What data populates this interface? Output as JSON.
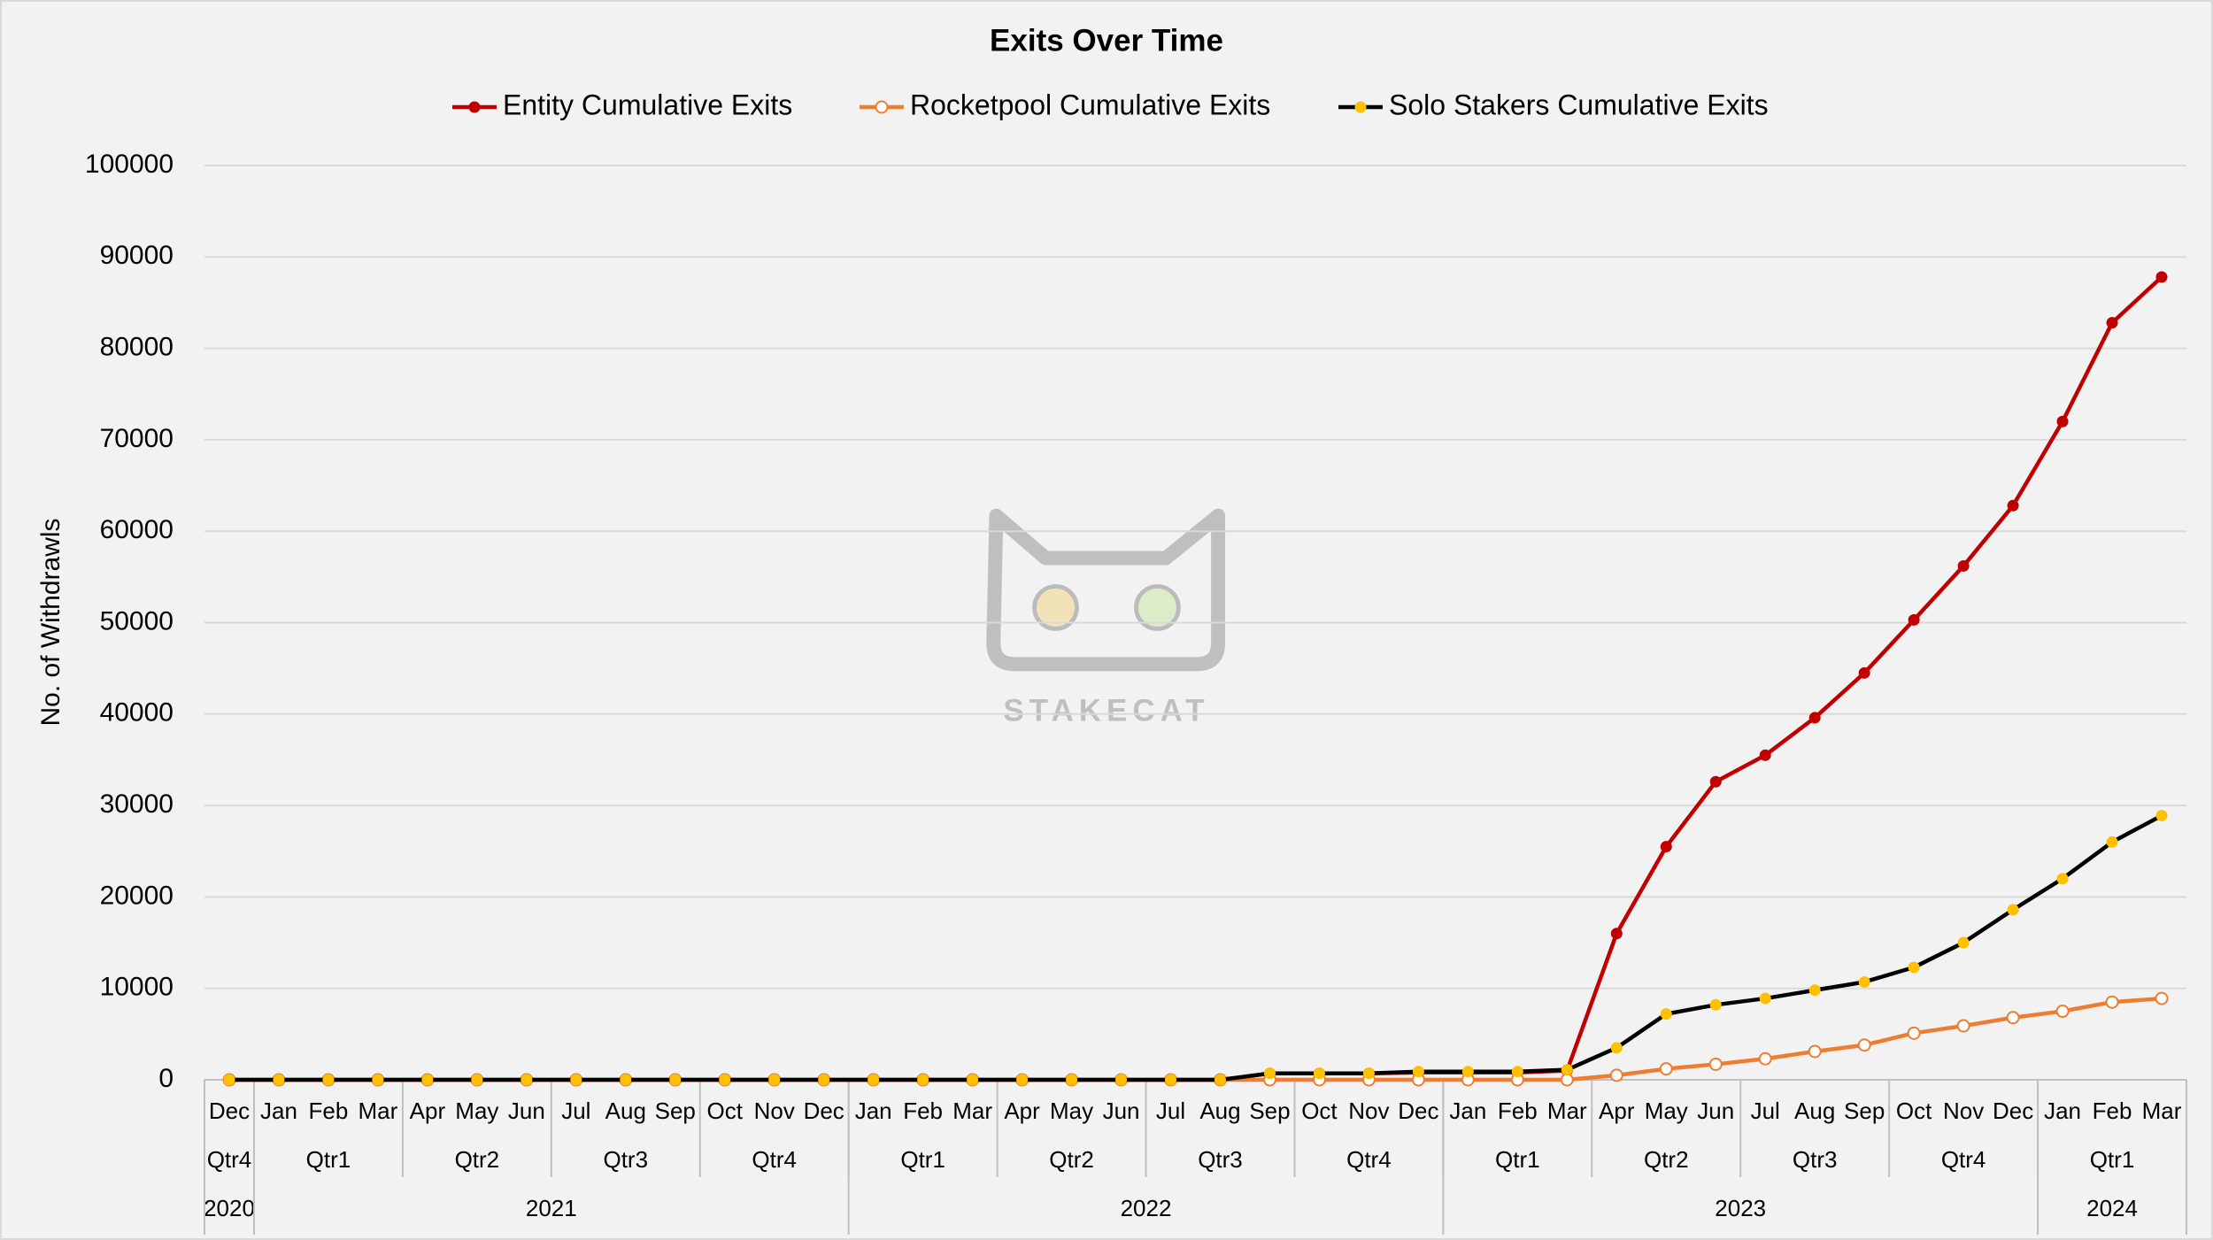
{
  "chart_data": {
    "type": "line",
    "title": "Exits Over Time",
    "y_label": "No. of Withdrawls",
    "watermark": "STAKECAT",
    "categories": [
      "Dec",
      "Jan",
      "Feb",
      "Mar",
      "Apr",
      "May",
      "Jun",
      "Jul",
      "Aug",
      "Sep",
      "Oct",
      "Nov",
      "Dec",
      "Jan",
      "Feb",
      "Mar",
      "Apr",
      "May",
      "Jun",
      "Jul",
      "Aug",
      "Sep",
      "Oct",
      "Nov",
      "Dec",
      "Jan",
      "Feb",
      "Mar",
      "Apr",
      "May",
      "Jun",
      "Jul",
      "Aug",
      "Sep",
      "Oct",
      "Nov",
      "Dec",
      "Jan",
      "Feb",
      "Mar"
    ],
    "quarters": [
      "Qtr4",
      "Qtr1",
      null,
      null,
      "Qtr2",
      null,
      null,
      "Qtr3",
      null,
      null,
      "Qtr4",
      null,
      null,
      "Qtr1",
      null,
      null,
      "Qtr2",
      null,
      null,
      "Qtr3",
      null,
      null,
      "Qtr4",
      null,
      null,
      "Qtr1",
      null,
      null,
      "Qtr2",
      null,
      null,
      "Qtr3",
      null,
      null,
      "Qtr4",
      null,
      null,
      "Qtr1",
      null,
      null
    ],
    "years": [
      "2020",
      "2021",
      null,
      null,
      null,
      null,
      null,
      null,
      null,
      null,
      null,
      null,
      null,
      "2022",
      null,
      null,
      null,
      null,
      null,
      null,
      null,
      null,
      null,
      null,
      null,
      "2023",
      null,
      null,
      null,
      null,
      null,
      null,
      null,
      null,
      null,
      null,
      null,
      "2024",
      null,
      null
    ],
    "series": [
      {
        "name": "Entity Cumulative Exits",
        "color": "#c00000",
        "marker_fill": "#c00000",
        "values": [
          0,
          0,
          0,
          0,
          0,
          0,
          0,
          0,
          0,
          0,
          0,
          0,
          0,
          0,
          0,
          0,
          0,
          0,
          0,
          0,
          0,
          700,
          700,
          700,
          800,
          800,
          800,
          1000,
          16000,
          25500,
          32600,
          35500,
          39600,
          44500,
          50300,
          56200,
          62800,
          72000,
          82800,
          87800
        ]
      },
      {
        "name": "Rocketpool Cumulative Exits",
        "color": "#ed7d31",
        "marker_fill": "#ffffff",
        "values": [
          0,
          0,
          0,
          0,
          0,
          0,
          0,
          0,
          0,
          0,
          0,
          0,
          0,
          0,
          0,
          0,
          0,
          0,
          0,
          0,
          0,
          0,
          0,
          0,
          0,
          0,
          0,
          0,
          500,
          1200,
          1700,
          2300,
          3100,
          3800,
          5100,
          5900,
          6800,
          7500,
          8500,
          8900
        ]
      },
      {
        "name": "Solo Stakers Cumulative Exits",
        "color": "#000000",
        "marker_fill": "#ffc000",
        "values": [
          0,
          0,
          0,
          0,
          0,
          0,
          0,
          0,
          0,
          0,
          0,
          0,
          0,
          0,
          0,
          0,
          0,
          0,
          0,
          0,
          0,
          700,
          700,
          700,
          900,
          900,
          900,
          1100,
          3500,
          7200,
          8200,
          8900,
          9800,
          10700,
          12300,
          15000,
          18600,
          22000,
          26000,
          28900
        ]
      }
    ],
    "ylim": [
      0,
      100000
    ],
    "yticks": [
      0,
      10000,
      20000,
      30000,
      40000,
      50000,
      60000,
      70000,
      80000,
      90000,
      100000
    ],
    "grid": true,
    "legend": "top"
  }
}
